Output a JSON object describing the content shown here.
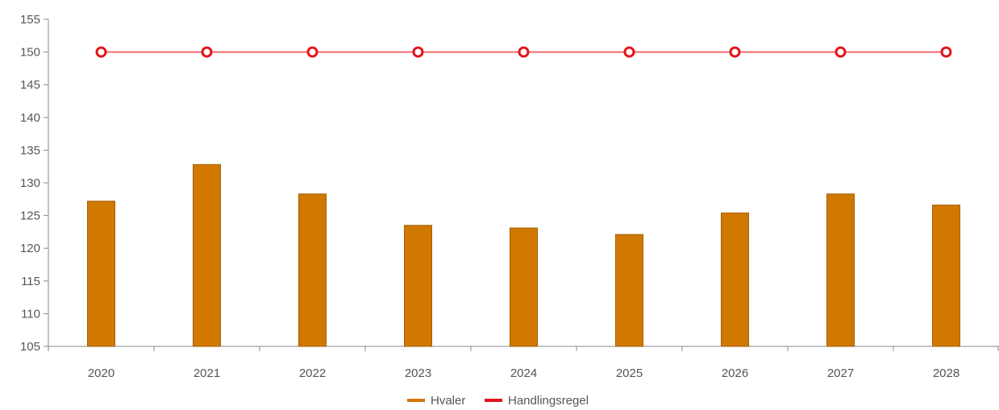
{
  "chart_data": {
    "type": "bar",
    "categories": [
      "2020",
      "2021",
      "2022",
      "2023",
      "2024",
      "2025",
      "2026",
      "2027",
      "2028"
    ],
    "series": [
      {
        "name": "Hvaler",
        "kind": "bar",
        "color": "#d07800",
        "values": [
          127.2,
          132.8,
          128.3,
          123.5,
          123.1,
          122.1,
          125.4,
          128.3,
          126.6
        ]
      },
      {
        "name": "Handlingsregel",
        "kind": "line",
        "color": "#e2141c",
        "values": [
          150,
          150,
          150,
          150,
          150,
          150,
          150,
          150,
          150
        ]
      }
    ],
    "title": "",
    "xlabel": "",
    "ylabel": "",
    "ylim": [
      105,
      155
    ],
    "yticks": [
      "105",
      "110",
      "115",
      "120",
      "125",
      "130",
      "135",
      "140",
      "145",
      "150",
      "155"
    ],
    "grid": false,
    "legend": "bottom-center"
  }
}
